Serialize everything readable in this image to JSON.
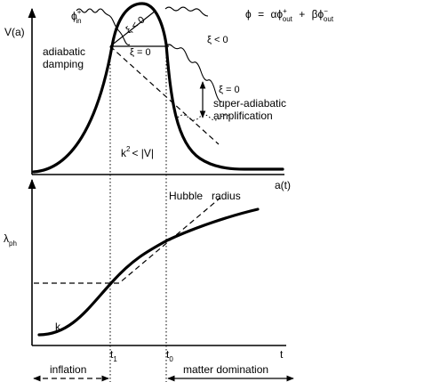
{
  "top_panel": {
    "y_axis_label": "V(a)",
    "x_axis_label": "a(t)",
    "equation": {
      "lhs": "ϕ",
      "eq": "=",
      "alpha": "α",
      "phi1": "ϕ",
      "sup1": "+",
      "sub1": "out",
      "plus": "+",
      "beta": "β",
      "phi2": "ϕ",
      "sup2": "−",
      "sub2": "out"
    },
    "incoming_wave": {
      "symbol": "ϕ",
      "sup": "+",
      "sub": "in"
    },
    "xi_inside_neg": "ξ < 0",
    "xi_inside_zero": "ξ = 0",
    "xi_right_neg": "ξ < 0",
    "xi_right_zero": "ξ = 0",
    "adiabatic_line1": "adiabatic",
    "adiabatic_line2": "damping",
    "super_line1": "super-adiabatic",
    "super_line2": "amplification",
    "k_base": "k",
    "k_exp": "2",
    "k_rest": "< |V|"
  },
  "bottom_panel": {
    "y_axis_label_base": "λ",
    "y_axis_label_sub": "ph",
    "x_axis_label": "t",
    "hubble_word1": "Hubble",
    "hubble_word2": "radius",
    "k_curve_label": "k",
    "t1_base": "t",
    "t1_sub": "1",
    "t0_base": "t",
    "t0_sub": "0"
  },
  "eras": {
    "inflation": "inflation",
    "matter": "matter domination"
  }
}
